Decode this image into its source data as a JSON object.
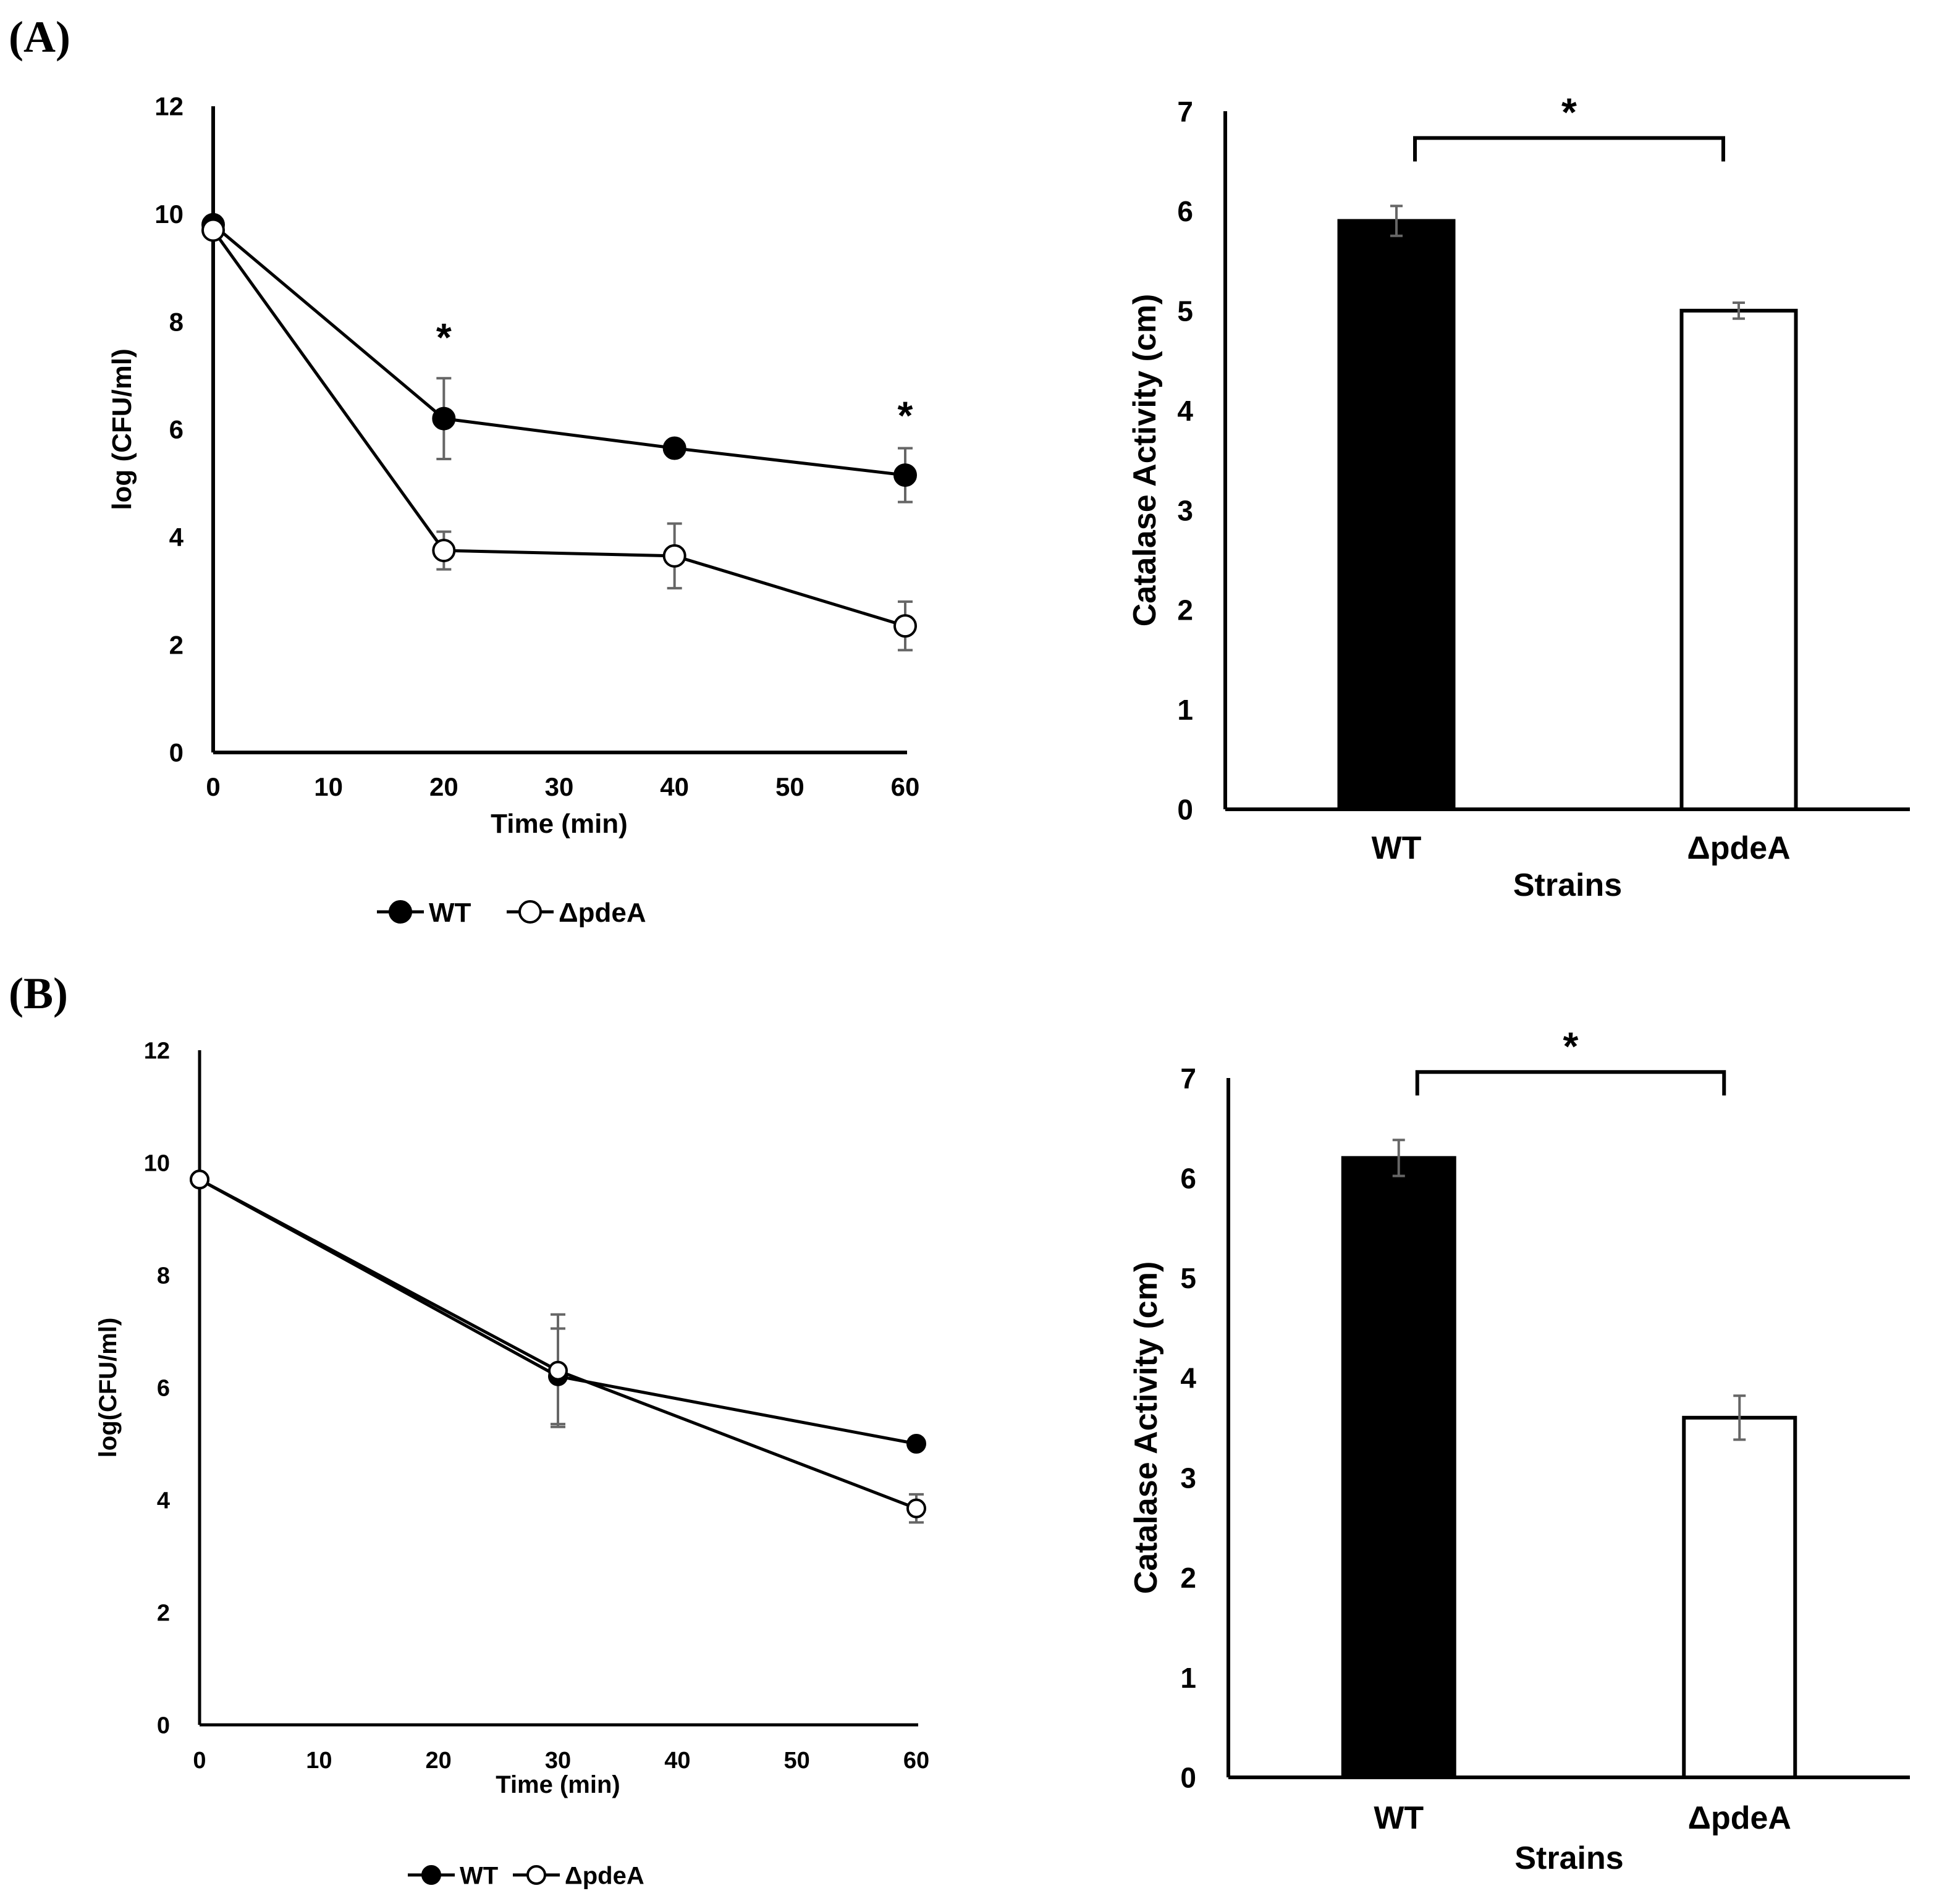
{
  "figure": {
    "panels": [
      {
        "label": "(A)"
      },
      {
        "label": "(B)"
      }
    ]
  },
  "chart_data": [
    {
      "id": "A-line",
      "type": "line",
      "title": "",
      "xlabel": "Time (min)",
      "ylabel": "log (CFU/ml)",
      "xlim": [
        0,
        60
      ],
      "ylim": [
        0,
        12
      ],
      "xticks": [
        0,
        10,
        20,
        30,
        40,
        50,
        60
      ],
      "yticks": [
        0,
        2,
        4,
        6,
        8,
        10,
        12
      ],
      "legend": {
        "position": "bottom",
        "entries": [
          "WT",
          "ΔpdeA"
        ]
      },
      "series": [
        {
          "name": "WT",
          "marker": "filled-circle",
          "x": [
            0,
            20,
            40,
            60
          ],
          "y": [
            9.8,
            6.2,
            5.65,
            5.15
          ],
          "err": [
            0,
            0.75,
            0,
            0.5
          ]
        },
        {
          "name": "ΔpdeA",
          "marker": "open-circle",
          "x": [
            0,
            20,
            40,
            60
          ],
          "y": [
            9.7,
            3.75,
            3.65,
            2.35
          ],
          "err": [
            0,
            0.35,
            0.6,
            0.45
          ]
        }
      ],
      "annotations": [
        {
          "text": "*",
          "x": 20,
          "y": 7.8
        },
        {
          "text": "*",
          "x": 60,
          "y": 6.35
        }
      ]
    },
    {
      "id": "A-bar",
      "type": "bar",
      "title": "",
      "xlabel": "Strains",
      "ylabel": "Catalase Activity (cm)",
      "ylim": [
        0,
        7
      ],
      "yticks": [
        0,
        1,
        2,
        3,
        4,
        5,
        6,
        7
      ],
      "categories": [
        "WT",
        "ΔpdeA"
      ],
      "values": [
        5.9,
        5.0
      ],
      "errors": [
        0.15,
        0.08
      ],
      "fills": [
        "#000000",
        "#ffffff"
      ],
      "significance": {
        "text": "*",
        "between": [
          "WT",
          "ΔpdeA"
        ]
      }
    },
    {
      "id": "B-line",
      "type": "line",
      "title": "",
      "xlabel": "Time (min)",
      "ylabel": "log(CFU/ml)",
      "xlim": [
        0,
        60
      ],
      "ylim": [
        0,
        12
      ],
      "xticks": [
        0,
        10,
        20,
        30,
        40,
        50,
        60
      ],
      "yticks": [
        0,
        2,
        4,
        6,
        8,
        10,
        12
      ],
      "legend": {
        "position": "bottom",
        "entries": [
          "WT",
          "ΔpdeA"
        ]
      },
      "series": [
        {
          "name": "WT",
          "marker": "filled-circle",
          "x": [
            0,
            30,
            60
          ],
          "y": [
            9.7,
            6.2,
            5.0
          ],
          "err": [
            0,
            0.85,
            0
          ]
        },
        {
          "name": "ΔpdeA",
          "marker": "open-circle",
          "x": [
            0,
            30,
            60
          ],
          "y": [
            9.7,
            6.3,
            3.85
          ],
          "err": [
            0,
            1.0,
            0.25
          ]
        }
      ],
      "annotations": []
    },
    {
      "id": "B-bar",
      "type": "bar",
      "title": "",
      "xlabel": "Strains",
      "ylabel": "Catalase Activity (cm)",
      "ylim": [
        0,
        7
      ],
      "yticks": [
        0,
        1,
        2,
        3,
        4,
        5,
        6,
        7
      ],
      "categories": [
        "WT",
        "ΔpdeA"
      ],
      "values": [
        6.2,
        3.6
      ],
      "errors": [
        0.18,
        0.22
      ],
      "fills": [
        "#000000",
        "#ffffff"
      ],
      "significance": {
        "text": "*",
        "between": [
          "WT",
          "ΔpdeA"
        ]
      }
    }
  ],
  "colors": {
    "ink": "#000000",
    "errorbar": "#666666",
    "open_marker_fill": "#ffffff"
  }
}
